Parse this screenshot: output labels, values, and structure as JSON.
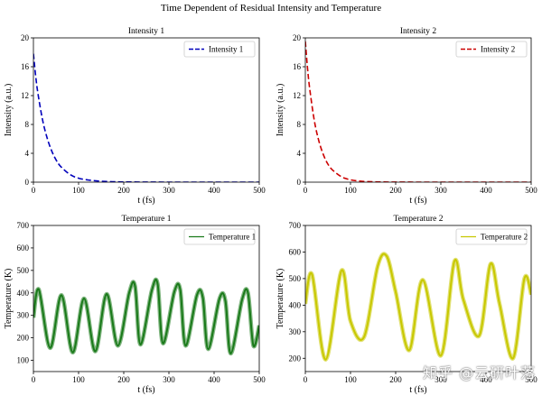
{
  "figure": {
    "suptitle": "Time Dependent of Residual Intensity and Temperature"
  },
  "watermark": "知乎 @云研叶落",
  "chart_data": [
    {
      "type": "line",
      "title": "Intensity 1",
      "xlabel": "t (fs)",
      "ylabel": "Intensity (a.u.)",
      "xlim": [
        0,
        500
      ],
      "ylim": [
        0,
        20
      ],
      "xticks": [
        0,
        100,
        200,
        300,
        400,
        500
      ],
      "yticks": [
        0,
        4,
        8,
        12,
        16,
        20
      ],
      "grid": false,
      "legend_position": "upper right",
      "series": [
        {
          "name": "Intensity 1",
          "color": "#0000bb",
          "style": "dashed",
          "x": [
            0,
            5,
            10,
            20,
            30,
            40,
            50,
            60,
            80,
            100,
            125,
            150,
            175,
            200,
            250,
            300,
            350,
            400,
            450,
            500
          ],
          "y": [
            17.8,
            14.7,
            12.3,
            8.7,
            6.2,
            4.4,
            3.1,
            2.2,
            1.1,
            0.55,
            0.27,
            0.13,
            0.06,
            0.03,
            0.01,
            0,
            0,
            0,
            0,
            0
          ]
        }
      ]
    },
    {
      "type": "line",
      "title": "Intensity 2",
      "xlabel": "t (fs)",
      "ylabel": "Intensity (a.u.)",
      "xlim": [
        0,
        500
      ],
      "ylim": [
        0,
        20
      ],
      "xticks": [
        0,
        100,
        200,
        300,
        400,
        500
      ],
      "yticks": [
        0,
        4,
        8,
        12,
        16,
        20
      ],
      "grid": false,
      "legend_position": "upper right",
      "series": [
        {
          "name": "Intensity 2",
          "color": "#cc0000",
          "style": "dashed",
          "x": [
            0,
            5,
            10,
            20,
            30,
            40,
            50,
            60,
            80,
            100,
            125,
            150,
            175,
            200,
            250,
            300,
            350,
            400,
            450,
            500
          ],
          "y": [
            19.5,
            15.7,
            12.8,
            8.5,
            5.7,
            3.8,
            2.5,
            1.7,
            0.75,
            0.33,
            0.12,
            0.05,
            0.02,
            0.01,
            0,
            0,
            0,
            0,
            0,
            0
          ]
        }
      ]
    },
    {
      "type": "line",
      "title": "Temperature 1",
      "xlabel": "t (fs)",
      "ylabel": "Temperature (K)",
      "xlim": [
        0,
        500
      ],
      "ylim": [
        50,
        700
      ],
      "xticks": [
        0,
        100,
        200,
        300,
        400,
        500
      ],
      "yticks": [
        100,
        200,
        300,
        400,
        500,
        600,
        700
      ],
      "grid": false,
      "legend_position": "upper right",
      "series": [
        {
          "name": "Temperature 1",
          "color": "#1a7a1a",
          "style": "solid",
          "x": [
            0,
            12,
            37,
            62,
            87,
            112,
            137,
            162,
            187,
            212,
            225,
            237,
            262,
            275,
            287,
            312,
            325,
            337,
            362,
            375,
            387,
            412,
            425,
            437,
            462,
            475,
            487,
            500
          ],
          "y": [
            290,
            415,
            155,
            390,
            135,
            375,
            140,
            395,
            165,
            400,
            430,
            170,
            410,
            440,
            175,
            405,
            415,
            165,
            390,
            380,
            150,
            375,
            365,
            130,
            370,
            400,
            165,
            255
          ]
        }
      ]
    },
    {
      "type": "line",
      "title": "Temperature 2",
      "xlabel": "t (fs)",
      "ylabel": "Temperature (K)",
      "xlim": [
        0,
        500
      ],
      "ylim": [
        150,
        700
      ],
      "xticks": [
        0,
        100,
        200,
        300,
        400,
        500
      ],
      "yticks": [
        200,
        300,
        400,
        500,
        600,
        700
      ],
      "grid": false,
      "legend_position": "upper right",
      "series": [
        {
          "name": "Temperature 2",
          "color": "#c8c800",
          "style": "solid",
          "x": [
            0,
            15,
            45,
            80,
            100,
            130,
            160,
            180,
            200,
            230,
            260,
            300,
            330,
            350,
            385,
            410,
            430,
            460,
            485,
            500
          ],
          "y": [
            405,
            515,
            195,
            530,
            340,
            280,
            545,
            585,
            450,
            230,
            495,
            210,
            565,
            420,
            285,
            555,
            405,
            200,
            500,
            440
          ]
        }
      ]
    }
  ]
}
